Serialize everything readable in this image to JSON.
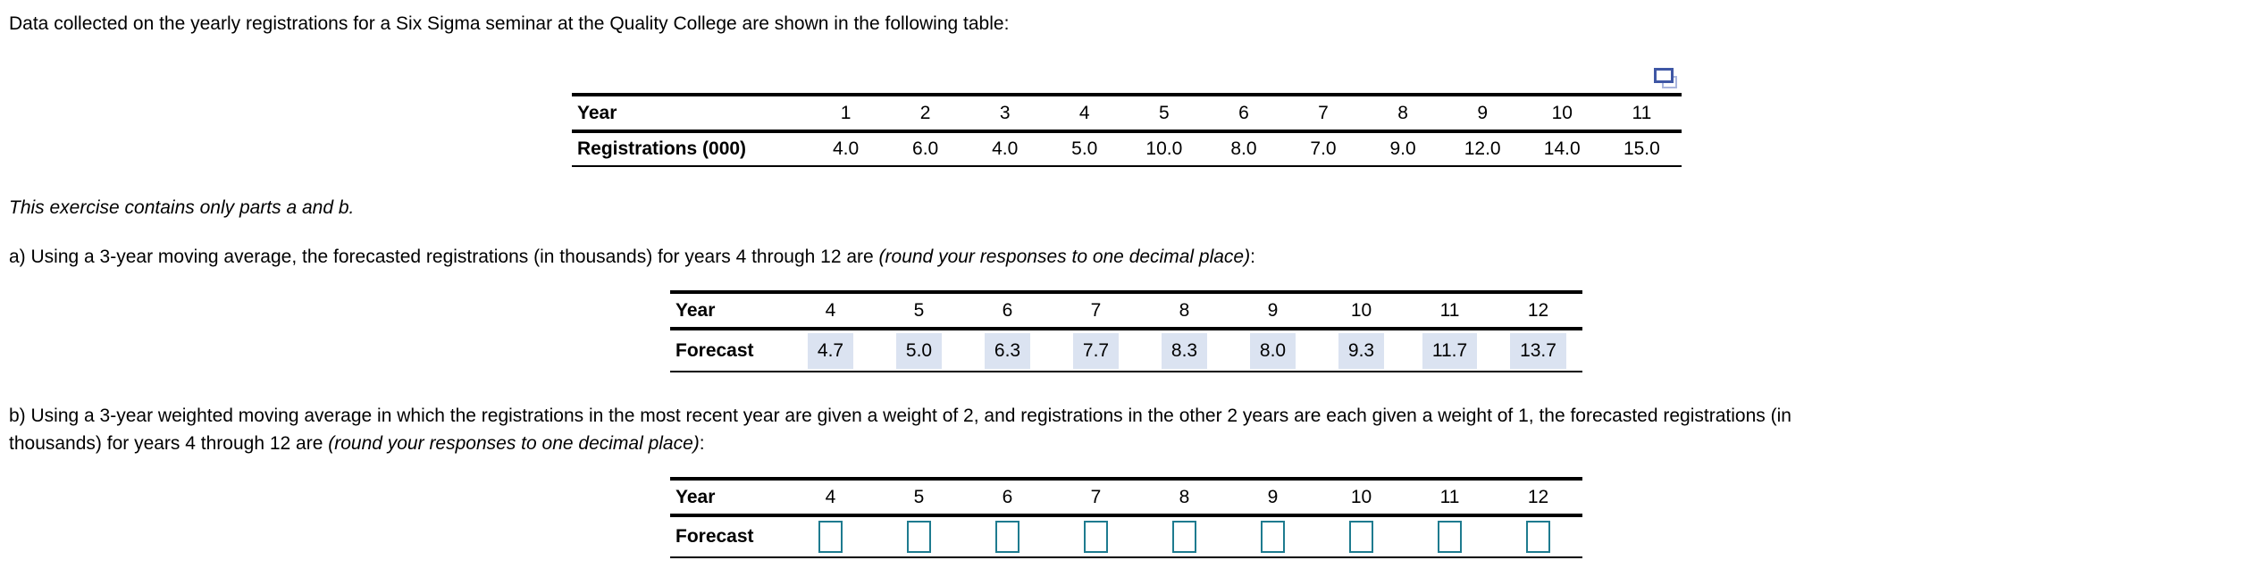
{
  "intro": "Data collected on the yearly registrations for a Six Sigma seminar at the Quality College are shown in the following table:",
  "exercise_note": "This exercise contains only parts a and b.",
  "icon": "copy-table-icon",
  "data_table": {
    "row1_label": "Year",
    "row2_label": "Registrations (000)",
    "years": [
      "1",
      "2",
      "3",
      "4",
      "5",
      "6",
      "7",
      "8",
      "9",
      "10",
      "11"
    ],
    "registrations": [
      "4.0",
      "6.0",
      "4.0",
      "5.0",
      "10.0",
      "8.0",
      "7.0",
      "9.0",
      "12.0",
      "14.0",
      "15.0"
    ]
  },
  "part_a": {
    "text_normal": "a) Using a 3-year moving average, the forecasted registrations (in thousands) for years 4 through 12 are ",
    "text_italic": "(round your responses to one decimal place)",
    "text_after": ":",
    "table": {
      "row1_label": "Year",
      "row2_label": "Forecast",
      "years": [
        "4",
        "5",
        "6",
        "7",
        "8",
        "9",
        "10",
        "11",
        "12"
      ],
      "forecasts": [
        "4.7",
        "5.0",
        "6.3",
        "7.7",
        "8.3",
        "8.0",
        "9.3",
        "11.7",
        "13.7"
      ]
    }
  },
  "part_b": {
    "line1": "b) Using a 3-year weighted moving average in which the registrations in the most recent year are given a weight of 2, and registrations in the other 2 years are each given a weight of 1, the forecasted registrations (in",
    "line2_normal": "thousands) for years 4 through 12 are ",
    "line2_italic": "(round your responses to one decimal place)",
    "line2_after": ":",
    "table": {
      "row1_label": "Year",
      "row2_label": "Forecast",
      "years": [
        "4",
        "5",
        "6",
        "7",
        "8",
        "9",
        "10",
        "11",
        "12"
      ],
      "inputs": [
        "",
        "",
        "",
        "",
        "",
        "",
        "",
        "",
        ""
      ]
    }
  },
  "colors": {
    "highlight_bg": "#dbe3f1",
    "input_border": "#1e7b8f",
    "icon_front": "#3f57a5",
    "icon_back": "#a9b5dd",
    "text": "#000000",
    "table_rule": "#000000"
  }
}
